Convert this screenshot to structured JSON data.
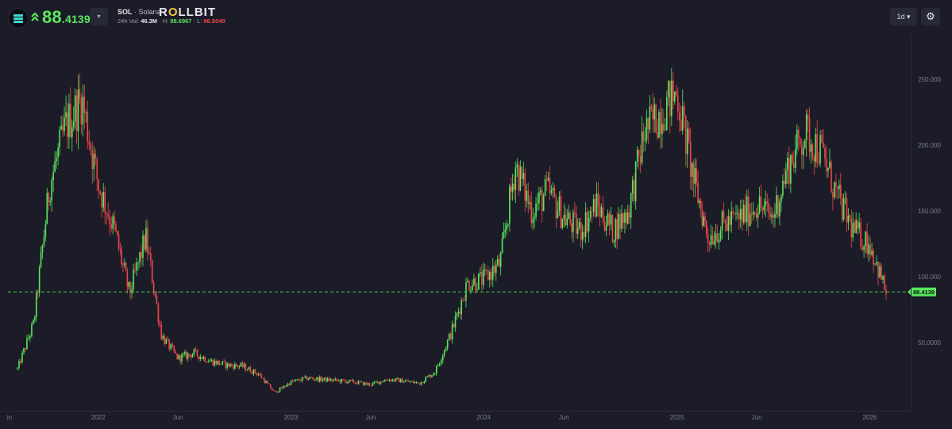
{
  "header": {
    "price_int": "88",
    "price_dec": ".4139",
    "dropdown_icon": "▾",
    "symbol": "SOL",
    "separator": "·",
    "name": "Solana",
    "brand_r": "R",
    "brand_o": "O",
    "brand_rest": "LLBIT",
    "vol_label": "24h Vol:",
    "vol_value": "46.3M",
    "high_label": "· H:",
    "high_value": "88.6967",
    "low_label": "· L:",
    "low_value": "86.5040",
    "timeframe": "1d",
    "timeframe_icon": "▾",
    "settings_icon": "⚙"
  },
  "colors": {
    "up": "#5ae85c",
    "down": "#f0474a",
    "background": "#1b1c28",
    "accent_logo": "#3fd8d0",
    "price_line": "#46c34a"
  },
  "chart_data": {
    "type": "line",
    "title": "",
    "xlabel": "",
    "ylabel": "",
    "x_ticks": [
      "in",
      "2022",
      "Jun",
      "2023",
      "Jun",
      "2024",
      "Jun",
      "2025",
      "Jun",
      "2026"
    ],
    "y_ticks": [
      "50.0000",
      "100.000",
      "150.000",
      "200.000",
      "250.000"
    ],
    "y_tick_values": [
      50,
      100,
      150,
      200,
      250
    ],
    "ylim": [
      0,
      283
    ],
    "x": [
      "2021-08",
      "2021-09",
      "2021-10",
      "2021-11",
      "2021-12",
      "2022-01",
      "2022-02",
      "2022-03",
      "2022-04",
      "2022-05",
      "2022-06",
      "2022-07",
      "2022-08",
      "2022-09",
      "2022-10",
      "2022-11",
      "2022-12",
      "2023-01",
      "2023-02",
      "2023-03",
      "2023-04",
      "2023-05",
      "2023-06",
      "2023-07",
      "2023-08",
      "2023-09",
      "2023-10",
      "2023-11",
      "2023-12",
      "2024-01",
      "2024-02",
      "2024-03",
      "2024-04",
      "2024-05",
      "2024-06",
      "2024-07",
      "2024-08",
      "2024-09",
      "2024-10",
      "2024-11",
      "2024-12",
      "2025-01",
      "2025-02",
      "2025-03",
      "2025-04",
      "2025-05",
      "2025-06",
      "2025-07",
      "2025-08",
      "2025-09",
      "2025-10",
      "2025-11",
      "2025-12",
      "2026-01",
      "2026-02"
    ],
    "series": [
      {
        "values": [
          30,
          65,
          170,
          215,
          235,
          170,
          135,
          87,
          130,
          55,
          38,
          42,
          36,
          33,
          32,
          26,
          12,
          20,
          23,
          22,
          21,
          20,
          18,
          22,
          21,
          19,
          28,
          58,
          95,
          98,
          110,
          185,
          150,
          165,
          145,
          135,
          155,
          135,
          150,
          210,
          225,
          240,
          175,
          130,
          140,
          145,
          155,
          145,
          185,
          210,
          195,
          160,
          135,
          125,
          88
        ]
      }
    ],
    "current_price": 88.4139,
    "current_price_label": "88.4139"
  }
}
